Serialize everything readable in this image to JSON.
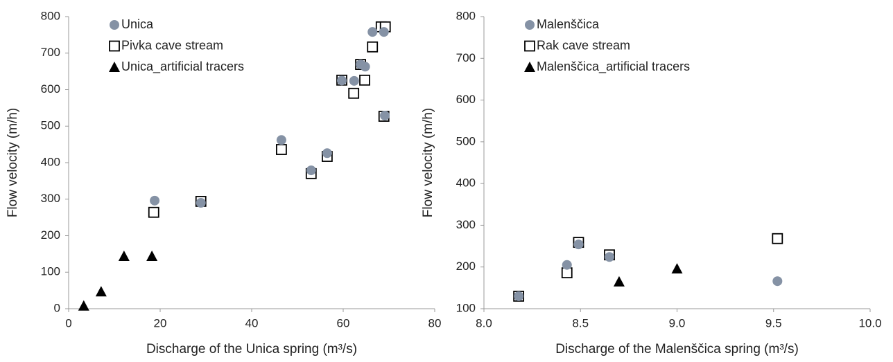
{
  "chart_data": [
    {
      "type": "scatter",
      "xlabel": "Discharge of the Unica spring (m³/s)",
      "ylabel": "Flow velocity (m/h)",
      "xlim": [
        0,
        80
      ],
      "xticks": [
        0,
        20,
        40,
        60,
        80
      ],
      "ylim": [
        0,
        800
      ],
      "yticks": [
        0,
        100,
        200,
        300,
        400,
        500,
        600,
        700,
        800
      ],
      "legend": "top-left",
      "series": [
        {
          "name": "Unica",
          "color": "#8592a5",
          "marker": "circle",
          "x": [
            18.8,
            28.9,
            46.5,
            53,
            56.5,
            59.7,
            62.4,
            63.8,
            64.8,
            66.4,
            68.9,
            69.1
          ],
          "values": [
            296,
            290,
            462,
            379,
            426,
            625,
            624,
            669,
            663,
            758,
            758,
            529
          ]
        },
        {
          "name": "Pivka cave stream",
          "color": "#000000",
          "marker": "square",
          "x": [
            18.6,
            28.9,
            46.5,
            53,
            56.5,
            59.7,
            62.3,
            63.8,
            64.7,
            66.4,
            68.3,
            69.2,
            68.9
          ],
          "values": [
            264,
            294,
            436,
            370,
            417,
            626,
            590,
            669,
            626,
            717,
            772,
            772,
            527
          ]
        },
        {
          "name": "Unica_artificial tracers",
          "color": "#000000",
          "marker": "triangle",
          "x": [
            3.3,
            7.1,
            12.1,
            18.2
          ],
          "values": [
            8,
            47,
            144,
            144
          ]
        }
      ]
    },
    {
      "type": "scatter",
      "xlabel": "Discharge of the Malenščica spring (m³/s)",
      "ylabel": "Flow velocity (m/h)",
      "xlim": [
        8.0,
        10.0
      ],
      "xticks": [
        {
          "value": 8.0,
          "label": "8.0"
        },
        {
          "value": 8.5,
          "label": "8.5"
        },
        {
          "value": 9.0,
          "label": "9.0"
        },
        {
          "value": 9.5,
          "label": "9.5"
        },
        {
          "value": 10.0,
          "label": "10.0"
        }
      ],
      "ylim": [
        100,
        800
      ],
      "yticks": [
        100,
        200,
        300,
        400,
        500,
        600,
        700,
        800
      ],
      "legend": "top-left",
      "series": [
        {
          "name": "Rak cave stream",
          "color": "#000000",
          "marker": "square",
          "x": [
            8.18,
            8.43,
            8.49,
            8.65,
            9.52
          ],
          "values": [
            130,
            186,
            259,
            229,
            268
          ]
        },
        {
          "name": "Malenščica",
          "color": "#8592a5",
          "marker": "circle",
          "x": [
            8.18,
            8.43,
            8.49,
            8.65,
            9.52
          ],
          "values": [
            130,
            205,
            254,
            224,
            166
          ]
        },
        {
          "name": "Malenščica_artificial tracers",
          "color": "#000000",
          "marker": "triangle",
          "x": [
            8.7,
            9.0
          ],
          "values": [
            165,
            196
          ]
        }
      ]
    }
  ]
}
